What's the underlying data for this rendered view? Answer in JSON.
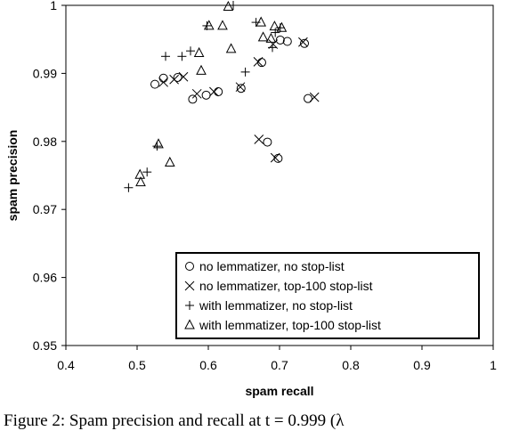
{
  "chart_data": {
    "type": "scatter",
    "xlabel": "spam  recall",
    "ylabel": "spam  precision",
    "xlim": [
      0.4,
      1
    ],
    "ylim": [
      0.95,
      1
    ],
    "x_ticks": [
      "0.4",
      "0.5",
      "0.6",
      "0.7",
      "0.8",
      "0.9",
      "1"
    ],
    "y_ticks": [
      "0.95",
      "0.96",
      "0.97",
      "0.98",
      "0.99",
      "1"
    ],
    "grid": false,
    "legend_position": "bottom-right",
    "series": [
      {
        "name": "no lemmatizer, no stop-list",
        "marker": "circle",
        "points": [
          [
            0.525,
            0.9884
          ],
          [
            0.537,
            0.9893
          ],
          [
            0.557,
            0.9894
          ],
          [
            0.578,
            0.9862
          ],
          [
            0.597,
            0.9868
          ],
          [
            0.614,
            0.9873
          ],
          [
            0.646,
            0.9878
          ],
          [
            0.675,
            0.9916
          ],
          [
            0.701,
            0.9949
          ],
          [
            0.711,
            0.9947
          ],
          [
            0.735,
            0.9944
          ],
          [
            0.74,
            0.9863
          ],
          [
            0.683,
            0.9799
          ],
          [
            0.698,
            0.9775
          ]
        ]
      },
      {
        "name": "no lemmatizer, top-100 stop-list",
        "marker": "x",
        "points": [
          [
            0.537,
            0.9887
          ],
          [
            0.552,
            0.9891
          ],
          [
            0.565,
            0.9895
          ],
          [
            0.584,
            0.987
          ],
          [
            0.608,
            0.9873
          ],
          [
            0.645,
            0.988
          ],
          [
            0.67,
            0.9917
          ],
          [
            0.691,
            0.9943
          ],
          [
            0.733,
            0.9946
          ],
          [
            0.749,
            0.9865
          ],
          [
            0.671,
            0.9803
          ],
          [
            0.694,
            0.9776
          ]
        ]
      },
      {
        "name": "with lemmatizer, no stop-list",
        "marker": "plus",
        "points": [
          [
            0.488,
            0.9732
          ],
          [
            0.514,
            0.9755
          ],
          [
            0.528,
            0.9793
          ],
          [
            0.54,
            0.9925
          ],
          [
            0.563,
            0.9925
          ],
          [
            0.575,
            0.9933
          ],
          [
            0.598,
            0.997
          ],
          [
            0.635,
            1.0
          ],
          [
            0.652,
            0.9902
          ],
          [
            0.667,
            0.9975
          ],
          [
            0.69,
            0.9938
          ],
          [
            0.694,
            0.996
          ],
          [
            0.701,
            0.9967
          ]
        ]
      },
      {
        "name": "with lemmatizer, top-100 stop-list",
        "marker": "triangle",
        "points": [
          [
            0.504,
            0.9751
          ],
          [
            0.505,
            0.974
          ],
          [
            0.53,
            0.9796
          ],
          [
            0.546,
            0.9769
          ],
          [
            0.59,
            0.9904
          ],
          [
            0.587,
            0.993
          ],
          [
            0.601,
            0.997
          ],
          [
            0.62,
            0.997
          ],
          [
            0.632,
            0.9936
          ],
          [
            0.628,
            0.9998
          ],
          [
            0.674,
            0.9975
          ],
          [
            0.677,
            0.9953
          ],
          [
            0.688,
            0.9951
          ],
          [
            0.693,
            0.9969
          ],
          [
            0.703,
            0.9967
          ]
        ]
      }
    ]
  },
  "caption": {
    "text": "Figure 2: Spam precision and recall at t = 0.999 (λ"
  }
}
